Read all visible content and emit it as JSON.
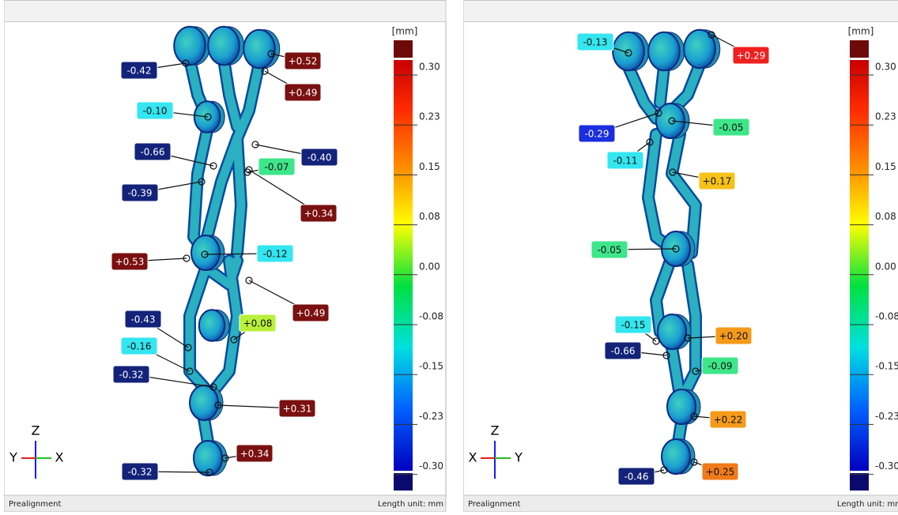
{
  "panels": [
    {
      "unit": "[mm]",
      "scale": [
        "0.30",
        "0.23",
        "0.15",
        "0.08",
        "0.00",
        "-0.08",
        "-0.15",
        "-0.23",
        "-0.30"
      ],
      "labels": [
        {
          "text": "-0.42",
          "color": "#13237a"
        },
        {
          "text": "+0.52",
          "color": "#7a1010"
        },
        {
          "text": "+0.49",
          "color": "#7a1010"
        },
        {
          "text": "-0.10",
          "color": "#33e6f0"
        },
        {
          "text": "-0.66",
          "color": "#13237a"
        },
        {
          "text": "-0.40",
          "color": "#13237a"
        },
        {
          "text": "-0.07",
          "color": "#3ee68a"
        },
        {
          "text": "-0.39",
          "color": "#13237a"
        },
        {
          "text": "+0.34",
          "color": "#7a1010"
        },
        {
          "text": "+0.53",
          "color": "#7a1010"
        },
        {
          "text": "-0.12",
          "color": "#33e6f0"
        },
        {
          "text": "+0.49",
          "color": "#7a1010"
        },
        {
          "text": "-0.43",
          "color": "#13237a"
        },
        {
          "text": "+0.08",
          "color": "#b8f03a"
        },
        {
          "text": "-0.16",
          "color": "#33e6f0"
        },
        {
          "text": "-0.32",
          "color": "#13237a"
        },
        {
          "text": "+0.31",
          "color": "#7a1010"
        },
        {
          "text": "+0.34",
          "color": "#7a1010"
        },
        {
          "text": "-0.32",
          "color": "#13237a"
        }
      ],
      "axes": {
        "up": "Z",
        "left": "Y",
        "right": "X"
      },
      "footer_left": "Prealignment",
      "footer_right": "Length unit: mm"
    },
    {
      "unit": "[mm]",
      "scale": [
        "0.30",
        "0.23",
        "0.15",
        "0.08",
        "0.00",
        "-0.08",
        "-0.15",
        "-0.23",
        "-0.30"
      ],
      "labels": [
        {
          "text": "-0.13",
          "color": "#33e6f0"
        },
        {
          "text": "+0.29",
          "color": "#f02020"
        },
        {
          "text": "-0.05",
          "color": "#3ee68a"
        },
        {
          "text": "-0.29",
          "color": "#1a2ee0"
        },
        {
          "text": "-0.11",
          "color": "#33e6f0"
        },
        {
          "text": "+0.17",
          "color": "#f5c21a"
        },
        {
          "text": "-0.05",
          "color": "#3ee68a"
        },
        {
          "text": "-0.15",
          "color": "#33e6f0"
        },
        {
          "text": "+0.20",
          "color": "#f59a1a"
        },
        {
          "text": "-0.66",
          "color": "#13237a"
        },
        {
          "text": "-0.09",
          "color": "#3ee68a"
        },
        {
          "text": "+0.22",
          "color": "#f59a1a"
        },
        {
          "text": "-0.46",
          "color": "#13237a"
        },
        {
          "text": "+0.25",
          "color": "#f07a1a"
        }
      ],
      "axes": {
        "up": "Z",
        "left": "X",
        "right": "Y"
      },
      "footer_left": "Prealignment",
      "footer_right": "Length unit: mm"
    }
  ]
}
